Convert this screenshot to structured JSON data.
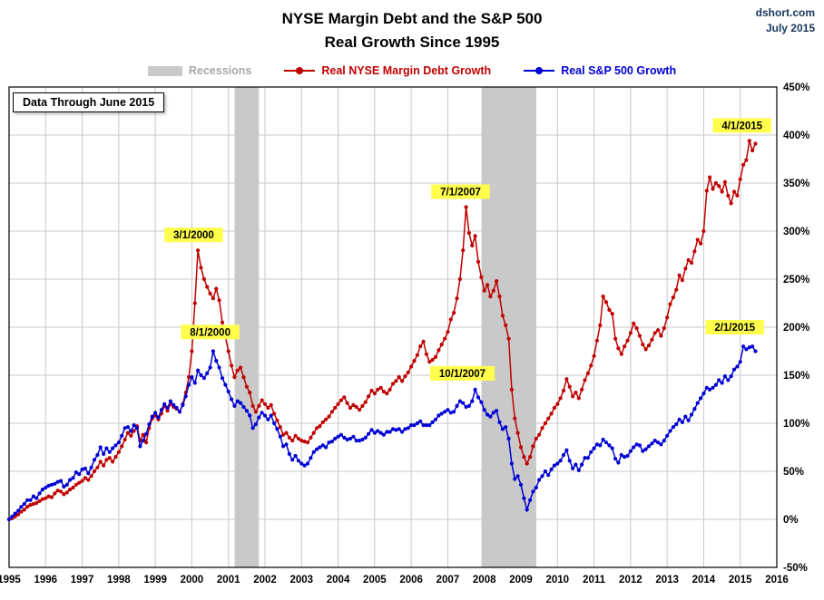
{
  "header": {
    "title_line1": "NYSE Margin Debt and the S&P 500",
    "title_line2": "Real Growth Since 1995",
    "source": "dshort.com",
    "date": "July 2015"
  },
  "legend": {
    "recessions": "Recessions"
  },
  "note": "Data Through June 2015",
  "chart_data": {
    "type": "line",
    "title": "NYSE Margin Debt and the S&P 500 — Real Growth Since 1995",
    "x_start_year": 1995,
    "points_per_year": 12,
    "xlim": [
      1995,
      2016
    ],
    "ylim": [
      -50,
      450
    ],
    "x_ticks": [
      1995,
      1996,
      1997,
      1998,
      1999,
      2000,
      2001,
      2002,
      2003,
      2004,
      2005,
      2006,
      2007,
      2008,
      2009,
      2010,
      2011,
      2012,
      2013,
      2014,
      2015,
      2016
    ],
    "y_ticks": [
      -50,
      0,
      50,
      100,
      150,
      200,
      250,
      300,
      350,
      400,
      450
    ],
    "y_tick_suffix": "%",
    "colors": {
      "grid": "#c8c8c8",
      "recession": "#c9c9c9",
      "highlight": "#ffff4c",
      "source_text": "#17375d",
      "legend_recessions_text": "#a6a6a6",
      "plot_border": "#000000"
    },
    "recessions": [
      {
        "start": 2001.17,
        "end": 2001.83
      },
      {
        "start": 2007.92,
        "end": 2009.42
      }
    ],
    "series": [
      {
        "name": "Real NYSE Margin Debt Growth",
        "data_name": "margin-debt-series",
        "color": "#c00000",
        "values_by_year": [
          [
            0,
            1,
            3,
            5,
            8,
            10,
            13,
            15,
            16,
            17,
            19,
            21
          ],
          [
            22,
            24,
            23,
            27,
            30,
            29,
            26,
            28,
            31,
            33,
            36,
            38
          ],
          [
            40,
            43,
            41,
            45,
            50,
            54,
            60,
            56,
            62,
            64,
            60,
            65
          ],
          [
            70,
            76,
            83,
            90,
            87,
            92,
            97,
            82,
            88,
            80,
            95,
            105
          ],
          [
            108,
            104,
            110,
            118,
            113,
            120,
            117,
            115,
            112,
            120,
            132,
            148
          ],
          [
            175,
            225,
            280,
            262,
            250,
            242,
            235,
            230,
            240,
            228,
            205,
            190
          ],
          [
            175,
            160,
            148,
            155,
            158,
            148,
            138,
            132,
            118,
            112,
            118,
            124
          ],
          [
            120,
            116,
            119,
            110,
            103,
            96,
            88,
            90,
            85,
            82,
            87,
            84
          ],
          [
            82,
            81,
            80,
            85,
            90,
            95,
            97,
            101,
            104,
            107,
            112,
            116
          ],
          [
            120,
            124,
            127,
            121,
            116,
            119,
            117,
            114,
            118,
            122,
            128,
            134
          ],
          [
            131,
            135,
            137,
            133,
            131,
            135,
            141,
            144,
            148,
            144,
            149,
            153
          ],
          [
            159,
            165,
            171,
            180,
            185,
            172,
            164,
            166,
            169,
            176,
            182,
            188
          ],
          [
            195,
            208,
            215,
            230,
            250,
            280,
            325,
            298,
            285,
            295,
            268,
            252
          ],
          [
            238,
            244,
            232,
            238,
            248,
            232,
            212,
            202,
            188,
            135,
            105,
            90
          ],
          [
            75,
            65,
            58,
            65,
            76,
            84,
            88,
            95,
            100,
            105,
            110,
            116
          ],
          [
            120,
            126,
            134,
            146,
            138,
            128,
            132,
            126,
            135,
            145,
            152,
            160
          ],
          [
            170,
            186,
            202,
            232,
            226,
            218,
            214,
            188,
            178,
            172,
            180,
            186
          ],
          [
            194,
            204,
            199,
            191,
            182,
            177,
            181,
            187,
            194,
            197,
            191,
            199
          ],
          [
            210,
            224,
            231,
            239,
            254,
            249,
            261,
            270,
            267,
            279,
            291,
            287
          ],
          [
            300,
            342,
            356,
            344,
            350,
            347,
            341,
            351,
            337,
            329,
            341,
            337
          ],
          [
            354,
            369,
            374,
            394,
            384,
            391
          ]
        ]
      },
      {
        "name": "Real S&P 500 Growth",
        "data_name": "sp500-series",
        "color": "#0000d4",
        "values_by_year": [
          [
            0,
            3,
            6,
            9,
            13,
            16,
            20,
            20,
            24,
            22,
            27,
            31
          ],
          [
            33,
            35,
            36,
            37,
            39,
            40,
            34,
            36,
            41,
            43,
            49,
            47
          ],
          [
            52,
            53,
            48,
            54,
            62,
            67,
            75,
            68,
            74,
            70,
            74,
            77
          ],
          [
            80,
            87,
            95,
            96,
            92,
            98,
            95,
            76,
            82,
            89,
            99,
            107
          ],
          [
            111,
            106,
            114,
            120,
            116,
            123,
            119,
            116,
            112,
            119,
            128,
            140
          ],
          [
            148,
            142,
            155,
            150,
            147,
            152,
            158,
            175,
            165,
            158,
            147,
            140
          ],
          [
            133,
            125,
            118,
            123,
            121,
            117,
            113,
            108,
            95,
            99,
            106,
            111
          ],
          [
            108,
            104,
            108,
            100,
            94,
            86,
            76,
            78,
            68,
            62,
            66,
            61
          ],
          [
            58,
            56,
            58,
            64,
            70,
            73,
            75,
            77,
            75,
            80,
            81,
            84
          ],
          [
            86,
            88,
            85,
            83,
            84,
            86,
            82,
            82,
            83,
            85,
            89,
            93
          ],
          [
            90,
            92,
            90,
            88,
            91,
            91,
            94,
            93,
            94,
            91,
            94,
            95
          ],
          [
            98,
            98,
            100,
            102,
            98,
            98,
            98,
            101,
            104,
            108,
            110,
            112
          ],
          [
            114,
            111,
            112,
            118,
            123,
            121,
            117,
            118,
            123,
            135,
            127,
            122
          ],
          [
            114,
            109,
            107,
            111,
            113,
            101,
            94,
            96,
            84,
            58,
            42,
            45
          ],
          [
            36,
            22,
            10,
            20,
            29,
            33,
            41,
            45,
            50,
            46,
            52,
            56
          ],
          [
            58,
            61,
            67,
            72,
            61,
            53,
            57,
            51,
            57,
            64,
            64,
            70
          ],
          [
            74,
            78,
            77,
            83,
            80,
            77,
            74,
            63,
            59,
            67,
            65,
            66
          ],
          [
            71,
            75,
            78,
            77,
            71,
            73,
            76,
            79,
            82,
            80,
            78,
            82
          ],
          [
            87,
            92,
            96,
            99,
            104,
            101,
            107,
            103,
            109,
            115,
            121,
            126
          ],
          [
            131,
            137,
            135,
            137,
            140,
            145,
            142,
            149,
            145,
            149,
            156,
            159
          ],
          [
            164,
            180,
            177,
            179,
            180,
            175
          ]
        ]
      }
    ],
    "annotations": [
      {
        "label": "3/1/2000",
        "x": 2000.05,
        "y": 296,
        "color": "#c00000"
      },
      {
        "label": "8/1/2000",
        "x": 2000.5,
        "y": 195,
        "color": "#0000d4"
      },
      {
        "label": "7/1/2007",
        "x": 2007.35,
        "y": 341,
        "color": "#c00000"
      },
      {
        "label": "10/1/2007",
        "x": 2007.4,
        "y": 152,
        "color": "#0000d4"
      },
      {
        "label": "4/1/2015",
        "x": 2015.05,
        "y": 410,
        "color": "#c00000"
      },
      {
        "label": "2/1/2015",
        "x": 2014.85,
        "y": 200,
        "color": "#0000d4"
      }
    ]
  }
}
